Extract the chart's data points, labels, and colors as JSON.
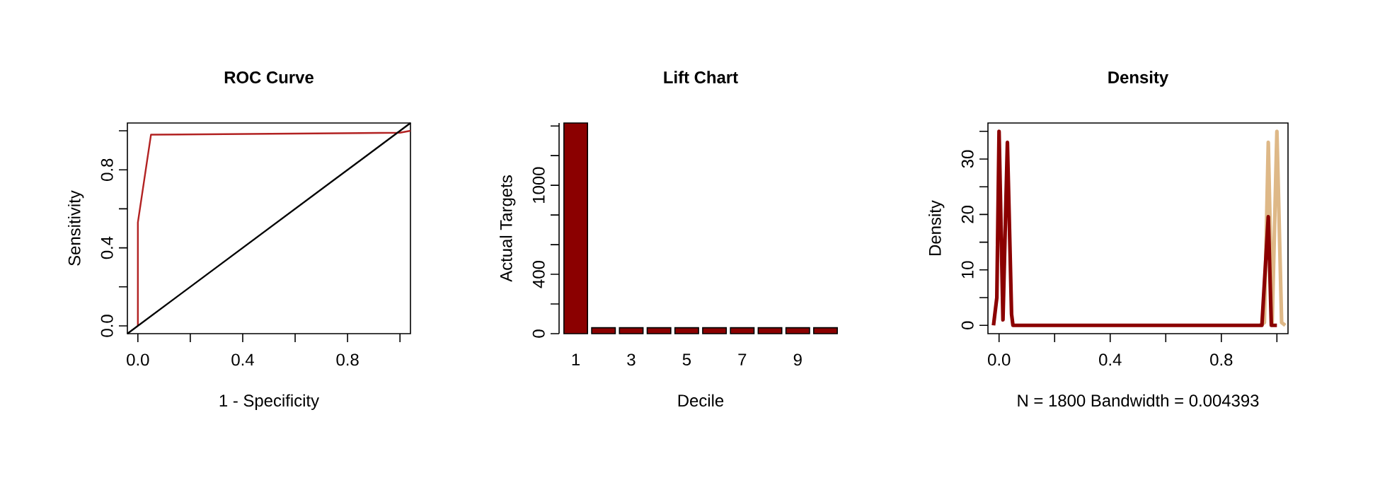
{
  "chart_data": [
    {
      "type": "line",
      "title": "ROC Curve",
      "xlabel": "1 - Specificity",
      "ylabel": "Sensitivity",
      "xlim": [
        -0.04,
        1.04
      ],
      "ylim": [
        -0.04,
        1.04
      ],
      "xticks": [
        {
          "value": 0,
          "label": "0.0"
        },
        {
          "value": 0.2,
          "label": null
        },
        {
          "value": 0.4,
          "label": "0.4"
        },
        {
          "value": 0.6,
          "label": null
        },
        {
          "value": 0.8,
          "label": "0.8"
        },
        {
          "value": 1.0,
          "label": null
        }
      ],
      "yticks": [
        {
          "value": 0,
          "label": "0.0"
        },
        {
          "value": 0.2,
          "label": null
        },
        {
          "value": 0.4,
          "label": "0.4"
        },
        {
          "value": 0.6,
          "label": null
        },
        {
          "value": 0.8,
          "label": "0.8"
        },
        {
          "value": 1.0,
          "label": null
        }
      ],
      "series": [
        {
          "color": "#b22222",
          "x": [
            0,
            0,
            0.05,
            1.0,
            1.04
          ],
          "values": [
            0,
            0.53,
            0.98,
            0.99,
            1.0
          ]
        },
        {
          "color": "#000000",
          "x": [
            -0.04,
            1.04
          ],
          "values": [
            -0.04,
            1.04
          ]
        }
      ]
    },
    {
      "type": "bar",
      "title": "Lift Chart",
      "xlabel": "Decile",
      "ylabel": "Actual Targets",
      "categories": [
        "1",
        null,
        "3",
        null,
        "5",
        null,
        "7",
        null,
        "9",
        null
      ],
      "values": [
        1420,
        40,
        40,
        40,
        40,
        40,
        40,
        40,
        40,
        40
      ],
      "color": "#8b0000",
      "ylim": [
        0,
        1420
      ],
      "yticks": [
        0,
        {
          "value": 200,
          "label": null
        },
        400,
        {
          "value": 600,
          "label": null
        },
        {
          "value": 800,
          "label": null
        },
        1000,
        {
          "value": 1200,
          "label": null
        },
        {
          "value": 1400,
          "label": null
        }
      ]
    },
    {
      "type": "line",
      "title": "Density",
      "xlabel": "N = 1800   Bandwidth = 0.004393",
      "ylabel": "Density",
      "xlim": [
        -0.04,
        1.04
      ],
      "ylim": [
        -1.5,
        36.5
      ],
      "xticks": [
        {
          "value": 0,
          "label": "0.0"
        },
        {
          "value": 0.2,
          "label": null
        },
        0.4,
        {
          "value": 0.6,
          "label": null
        },
        0.8,
        {
          "value": 1.0,
          "label": null
        }
      ],
      "yticks": [
        0,
        {
          "value": 5,
          "label": null
        },
        10,
        {
          "value": 15,
          "label": null
        },
        20,
        {
          "value": 25,
          "label": null
        },
        30,
        {
          "value": 35,
          "label": null
        }
      ],
      "series": [
        {
          "color": "#deb887",
          "x": [
            0.94,
            0.955,
            0.969,
            0.983,
            1.0,
            1.017,
            1.03
          ],
          "values": [
            0,
            0.5,
            33,
            0.5,
            35,
            0.5,
            0
          ]
        },
        {
          "color": "#8b0000",
          "x": [
            -0.02,
            -0.008,
            0.0,
            0.014,
            0.03,
            0.045,
            0.05,
            0.946,
            0.969,
            0.98,
            1.0
          ],
          "values": [
            0,
            5,
            35,
            1,
            33,
            2,
            0,
            0,
            19.6,
            0,
            0
          ]
        }
      ]
    }
  ]
}
